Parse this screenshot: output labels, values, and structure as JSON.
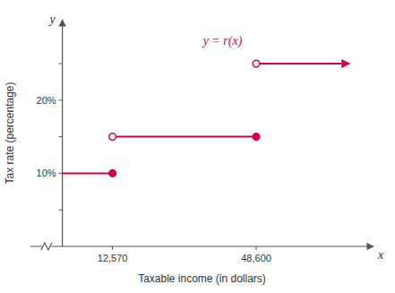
{
  "chart_data": {
    "type": "step",
    "title": "y = r(x)",
    "color": "#d6004c",
    "x_label": "Taxable income (in dollars)",
    "y_label": "Tax rate (percentage)",
    "annotations": [
      "x",
      "y"
    ],
    "series": [
      {
        "x": [
          0,
          12570
        ],
        "values": [
          10,
          10
        ],
        "marker": "filled-end"
      },
      {
        "x": [
          12570,
          48600
        ],
        "values": [
          15,
          15
        ],
        "marker": "open-start-filled-end"
      },
      {
        "x": [
          48600,
          72000
        ],
        "values": [
          25,
          25
        ],
        "marker": "open-start-arrow-end"
      }
    ],
    "xlim": [
      -8000,
      78000
    ],
    "ylim": [
      0,
      31
    ],
    "xticks": [
      {
        "value": 12570,
        "label": "12,570"
      },
      {
        "value": 48600,
        "label": "48,600"
      }
    ],
    "yticks": [
      {
        "value": 5,
        "label": null
      },
      {
        "value": 10,
        "label": "10%"
      },
      {
        "value": 15,
        "label": null
      },
      {
        "value": 20,
        "label": "20%"
      },
      {
        "value": 25,
        "label": null
      }
    ],
    "grid": false
  }
}
